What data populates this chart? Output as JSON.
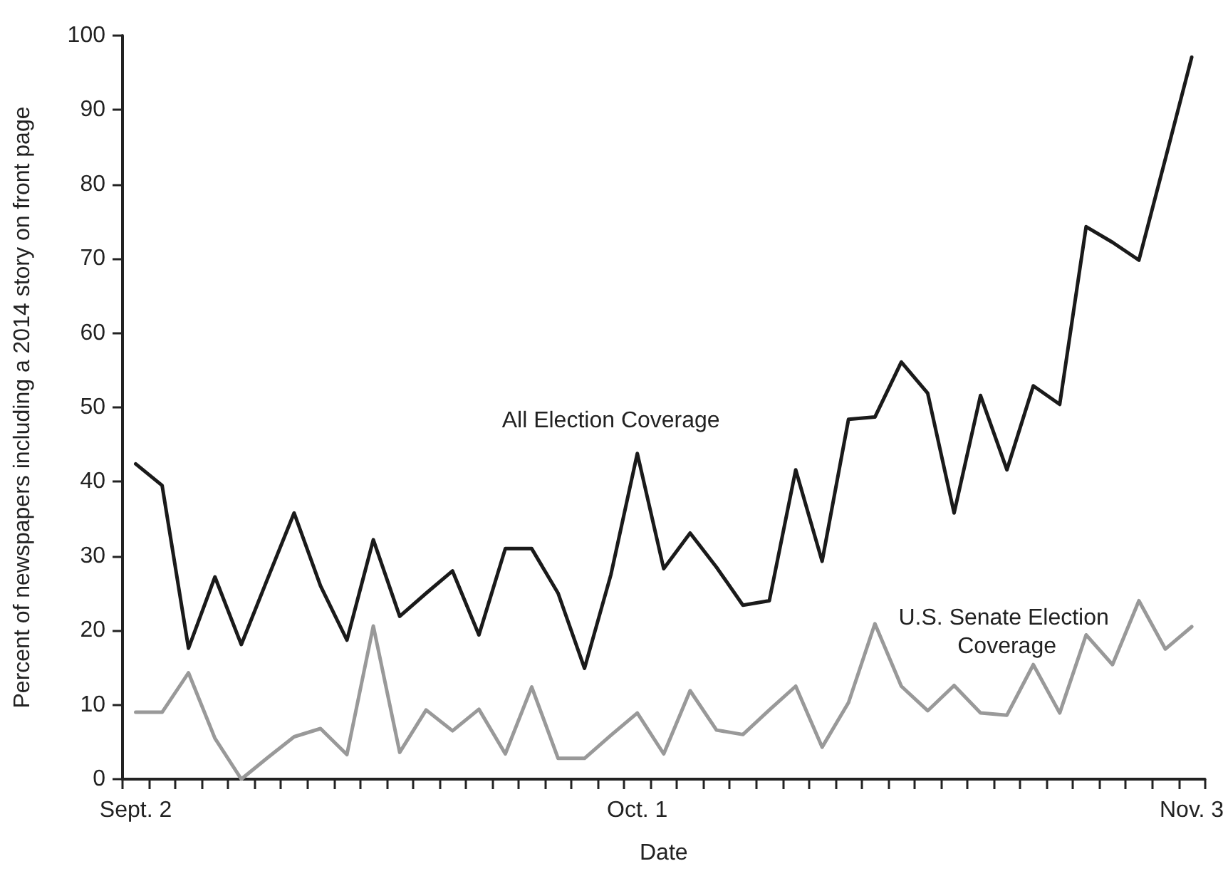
{
  "chart_data": {
    "type": "line",
    "xlabel": "Date",
    "ylabel": "Percent of newspapers including a 2014 story on front page",
    "categories": [
      "Sept. 2",
      null,
      null,
      null,
      null,
      null,
      null,
      null,
      null,
      null,
      null,
      null,
      null,
      null,
      null,
      null,
      null,
      null,
      null,
      "Oct. 1",
      null,
      null,
      null,
      null,
      null,
      null,
      null,
      null,
      null,
      null,
      null,
      null,
      null,
      null,
      null,
      null,
      null,
      null,
      null,
      null,
      "Nov. 3"
    ],
    "series": [
      {
        "name": "All Election Coverage",
        "color": "#1a1a1a",
        "values": [
          42.4,
          39.5,
          17.6,
          27.2,
          18.1,
          27,
          35.8,
          26,
          18.7,
          32.2,
          21.9,
          25,
          28,
          19.4,
          31,
          31,
          25,
          14.9,
          27.5,
          43.8,
          28.3,
          33.1,
          28.5,
          23.4,
          24,
          41.6,
          29.3,
          48.4,
          48.7,
          56.1,
          51.9,
          35.8,
          51.6,
          41.6,
          52.9,
          50.4,
          74.3,
          72.2,
          69.8,
          83.4,
          97.1
        ]
      },
      {
        "name": "U.S. Senate Election Coverage",
        "color": "#999999",
        "values": [
          9,
          9,
          14.3,
          5.5,
          0,
          2.9,
          5.7,
          6.8,
          3.3,
          20.6,
          3.6,
          9.3,
          6.5,
          9.4,
          3.4,
          12.4,
          2.8,
          2.8,
          5.9,
          8.9,
          3.4,
          11.9,
          6.6,
          6,
          9.3,
          12.5,
          4.3,
          10.3,
          20.9,
          12.5,
          9.2,
          12.6,
          8.9,
          8.6,
          15.4,
          8.9,
          19.4,
          15.4,
          24,
          17.5,
          20.5
        ]
      }
    ],
    "ylim": [
      0,
      100
    ],
    "yticks": [
      0,
      10,
      20,
      30,
      40,
      50,
      60,
      70,
      80,
      90,
      100
    ],
    "grid": false,
    "legend": false,
    "marker": "none",
    "line_style": "solid"
  }
}
